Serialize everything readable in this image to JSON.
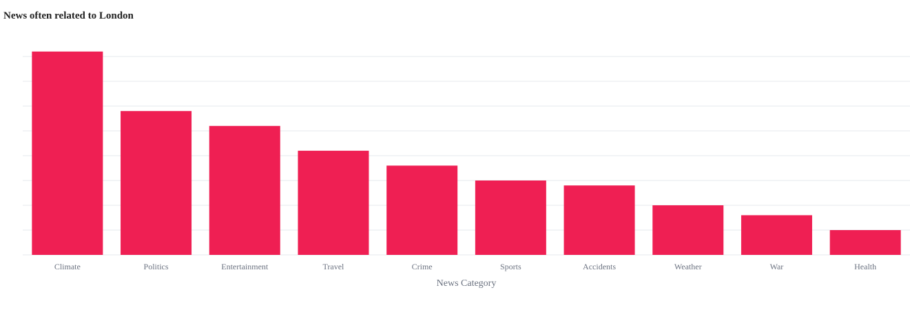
{
  "chart_data": {
    "type": "bar",
    "title": "News often related to London",
    "xlabel": "News Category",
    "ylabel": "",
    "categories": [
      "Climate",
      "Politics",
      "Entertainment",
      "Travel",
      "Crime",
      "Sports",
      "Accidents",
      "Weather",
      "War",
      "Health"
    ],
    "values": [
      41,
      29,
      26,
      21,
      18,
      15,
      14,
      10,
      8,
      5
    ],
    "ylim": [
      0,
      41
    ],
    "grid": true,
    "colors": {
      "bar": "#ef1f53",
      "grid": "#e6e8ee",
      "text": "#6b7280",
      "title": "#222222"
    }
  }
}
